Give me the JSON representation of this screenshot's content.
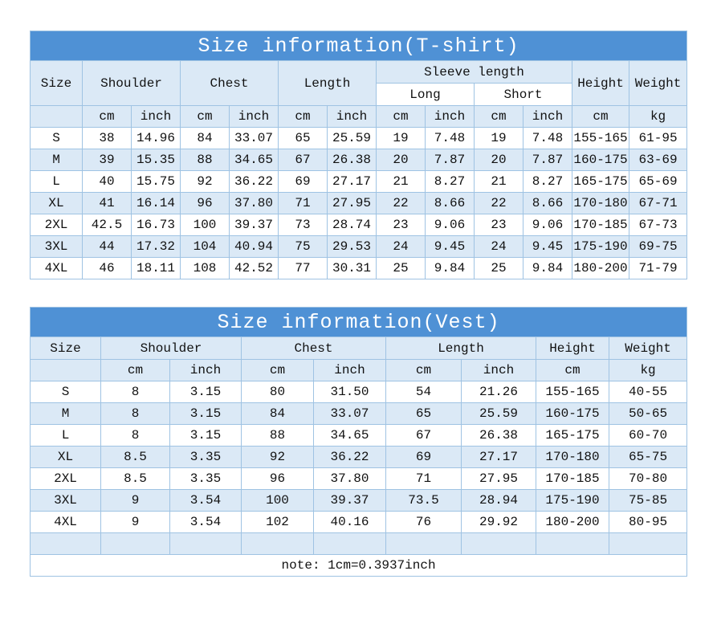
{
  "colors": {
    "title_bar_blue": "#4f91d5",
    "light_blue_row": "#dbe9f6",
    "cell_border": "#9fc3e3",
    "title_text": "#ffffff",
    "body_text": "#111111",
    "page_background": "#ffffff"
  },
  "chart_data": [
    {
      "type": "table",
      "title": "Size information(T-shirt)",
      "columns": [
        "Size",
        "Shoulder cm",
        "Shoulder inch",
        "Chest cm",
        "Chest inch",
        "Length cm",
        "Length inch",
        "Sleeve Long cm",
        "Sleeve Long inch",
        "Sleeve Short cm",
        "Sleeve Short inch",
        "Height cm",
        "Weight kg"
      ],
      "rows": [
        [
          "S",
          "38",
          "14.96",
          "84",
          "33.07",
          "65",
          "25.59",
          "19",
          "7.48",
          "19",
          "7.48",
          "155-165",
          "61-95"
        ],
        [
          "M",
          "39",
          "15.35",
          "88",
          "34.65",
          "67",
          "26.38",
          "20",
          "7.87",
          "20",
          "7.87",
          "160-175",
          "63-69"
        ],
        [
          "L",
          "40",
          "15.75",
          "92",
          "36.22",
          "69",
          "27.17",
          "21",
          "8.27",
          "21",
          "8.27",
          "165-175",
          "65-69"
        ],
        [
          "XL",
          "41",
          "16.14",
          "96",
          "37.80",
          "71",
          "27.95",
          "22",
          "8.66",
          "22",
          "8.66",
          "170-180",
          "67-71"
        ],
        [
          "2XL",
          "42.5",
          "16.73",
          "100",
          "39.37",
          "73",
          "28.74",
          "23",
          "9.06",
          "23",
          "9.06",
          "170-185",
          "67-73"
        ],
        [
          "3XL",
          "44",
          "17.32",
          "104",
          "40.94",
          "75",
          "29.53",
          "24",
          "9.45",
          "24",
          "9.45",
          "175-190",
          "69-75"
        ],
        [
          "4XL",
          "46",
          "18.11",
          "108",
          "42.52",
          "77",
          "30.31",
          "25",
          "9.84",
          "25",
          "9.84",
          "180-200",
          "71-79"
        ]
      ]
    },
    {
      "type": "table",
      "title": "Size information(Vest)",
      "columns": [
        "Size",
        "Shoulder cm",
        "Shoulder inch",
        "Chest cm",
        "Chest inch",
        "Length cm",
        "Length inch",
        "Height cm",
        "Weight kg"
      ],
      "rows": [
        [
          "S",
          "8",
          "3.15",
          "80",
          "31.50",
          "54",
          "21.26",
          "155-165",
          "40-55"
        ],
        [
          "M",
          "8",
          "3.15",
          "84",
          "33.07",
          "65",
          "25.59",
          "160-175",
          "50-65"
        ],
        [
          "L",
          "8",
          "3.15",
          "88",
          "34.65",
          "67",
          "26.38",
          "165-175",
          "60-70"
        ],
        [
          "XL",
          "8.5",
          "3.35",
          "92",
          "36.22",
          "69",
          "27.17",
          "170-180",
          "65-75"
        ],
        [
          "2XL",
          "8.5",
          "3.35",
          "96",
          "37.80",
          "71",
          "27.95",
          "170-185",
          "70-80"
        ],
        [
          "3XL",
          "9",
          "3.54",
          "100",
          "39.37",
          "73.5",
          "28.94",
          "175-190",
          "75-85"
        ],
        [
          "4XL",
          "9",
          "3.54",
          "102",
          "40.16",
          "76",
          "29.92",
          "180-200",
          "80-95"
        ]
      ],
      "note": "note: 1cm=0.3937inch"
    }
  ],
  "tshirt": {
    "title": "Size information(T-shirt)",
    "headers": {
      "size": "Size",
      "shoulder": "Shoulder",
      "chest": "Chest",
      "length": "Length",
      "sleeve_length": "Sleeve length",
      "long": "Long",
      "short": "Short",
      "height": "Height",
      "weight": "Weight"
    },
    "units_row": [
      "",
      "cm",
      "inch",
      "cm",
      "inch",
      "cm",
      "inch",
      "cm",
      "inch",
      "cm",
      "inch",
      "cm",
      "kg"
    ],
    "rows": [
      [
        "S",
        "38",
        "14.96",
        "84",
        "33.07",
        "65",
        "25.59",
        "19",
        "7.48",
        "19",
        "7.48",
        "155-165",
        "61-95"
      ],
      [
        "M",
        "39",
        "15.35",
        "88",
        "34.65",
        "67",
        "26.38",
        "20",
        "7.87",
        "20",
        "7.87",
        "160-175",
        "63-69"
      ],
      [
        "L",
        "40",
        "15.75",
        "92",
        "36.22",
        "69",
        "27.17",
        "21",
        "8.27",
        "21",
        "8.27",
        "165-175",
        "65-69"
      ],
      [
        "XL",
        "41",
        "16.14",
        "96",
        "37.80",
        "71",
        "27.95",
        "22",
        "8.66",
        "22",
        "8.66",
        "170-180",
        "67-71"
      ],
      [
        "2XL",
        "42.5",
        "16.73",
        "100",
        "39.37",
        "73",
        "28.74",
        "23",
        "9.06",
        "23",
        "9.06",
        "170-185",
        "67-73"
      ],
      [
        "3XL",
        "44",
        "17.32",
        "104",
        "40.94",
        "75",
        "29.53",
        "24",
        "9.45",
        "24",
        "9.45",
        "175-190",
        "69-75"
      ],
      [
        "4XL",
        "46",
        "18.11",
        "108",
        "42.52",
        "77",
        "30.31",
        "25",
        "9.84",
        "25",
        "9.84",
        "180-200",
        "71-79"
      ]
    ]
  },
  "vest": {
    "title": "Size information(Vest)",
    "headers": {
      "size": "Size",
      "shoulder": "Shoulder",
      "chest": "Chest",
      "length": "Length",
      "height": "Height",
      "weight": "Weight"
    },
    "units_row": [
      "",
      "cm",
      "inch",
      "cm",
      "inch",
      "cm",
      "inch",
      "cm",
      "kg"
    ],
    "rows": [
      [
        "S",
        "8",
        "3.15",
        "80",
        "31.50",
        "54",
        "21.26",
        "155-165",
        "40-55"
      ],
      [
        "M",
        "8",
        "3.15",
        "84",
        "33.07",
        "65",
        "25.59",
        "160-175",
        "50-65"
      ],
      [
        "L",
        "8",
        "3.15",
        "88",
        "34.65",
        "67",
        "26.38",
        "165-175",
        "60-70"
      ],
      [
        "XL",
        "8.5",
        "3.35",
        "92",
        "36.22",
        "69",
        "27.17",
        "170-180",
        "65-75"
      ],
      [
        "2XL",
        "8.5",
        "3.35",
        "96",
        "37.80",
        "71",
        "27.95",
        "170-185",
        "70-80"
      ],
      [
        "3XL",
        "9",
        "3.54",
        "100",
        "39.37",
        "73.5",
        "28.94",
        "175-190",
        "75-85"
      ],
      [
        "4XL",
        "9",
        "3.54",
        "102",
        "40.16",
        "76",
        "29.92",
        "180-200",
        "80-95"
      ],
      [
        "",
        "",
        "",
        "",
        "",
        "",
        "",
        "",
        ""
      ]
    ],
    "note": "note: 1cm=0.3937inch"
  }
}
